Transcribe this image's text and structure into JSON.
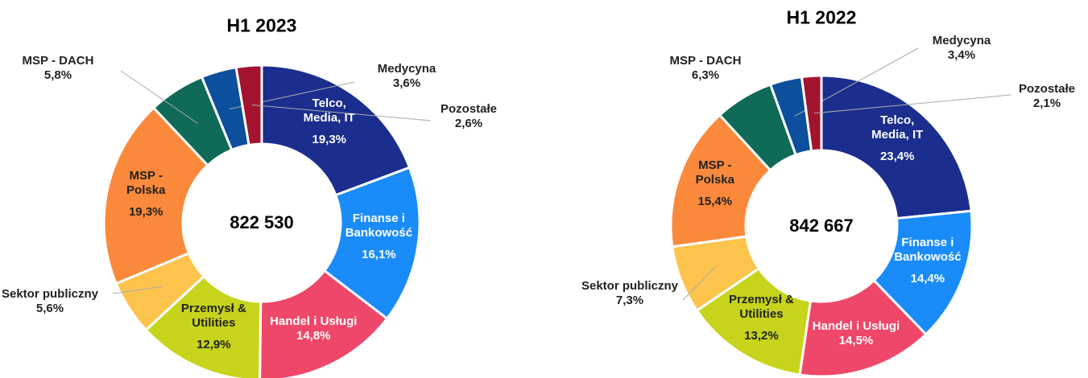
{
  "chart_data": [
    {
      "type": "pie",
      "title": "H1 2023",
      "center_label": "822 530",
      "categories": [
        "Telco,\nMedia, IT",
        "Finanse i\nBankowość",
        "Handel i Usługi",
        "Przemysł &\nUtilities",
        "Sektor publiczny",
        "MSP -\nPolska",
        "MSP - DACH",
        "Medycyna",
        "Pozostałe"
      ],
      "values": [
        19.3,
        16.1,
        14.8,
        12.9,
        5.6,
        19.3,
        5.8,
        3.6,
        2.6
      ],
      "value_labels": [
        "19,3%",
        "16,1%",
        "14,8%",
        "12,9%",
        "5,6%",
        "19,3%",
        "5,8%",
        "3,6%",
        "2,6%"
      ],
      "colors": [
        "#1b2e8e",
        "#1a8cfa",
        "#ef4769",
        "#c7d41b",
        "#fcc44d",
        "#fb893b",
        "#0f6a57",
        "#0b4f9d",
        "#a2142f"
      ]
    },
    {
      "type": "pie",
      "title": "H1 2022",
      "center_label": "842 667",
      "categories": [
        "Telco,\nMedia, IT",
        "Finanse i\nBankowość",
        "Handel i Usługi",
        "Przemysł &\nUtilities",
        "Sektor publiczny",
        "MSP -\nPolska",
        "MSP - DACH",
        "Medycyna",
        "Pozostałe"
      ],
      "values": [
        23.4,
        14.4,
        14.5,
        13.2,
        7.3,
        15.4,
        6.3,
        3.4,
        2.1
      ],
      "value_labels": [
        "23,4%",
        "14,4%",
        "14,5%",
        "13,2%",
        "7,3%",
        "15,4%",
        "6,3%",
        "3,4%",
        "2,1%"
      ],
      "colors": [
        "#1b2e8e",
        "#1a8cfa",
        "#ef4769",
        "#c7d41b",
        "#fcc44d",
        "#fb893b",
        "#0f6a57",
        "#0b4f9d",
        "#a2142f"
      ]
    }
  ]
}
